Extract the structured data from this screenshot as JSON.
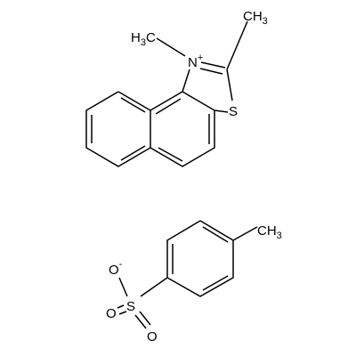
{
  "molecules": [
    {
      "atoms": [
        {
          "label": "H",
          "sub": "3",
          "tail": "C"
        },
        {
          "label": "N",
          "charge": "+"
        },
        {
          "label": "CH",
          "sub": "3"
        },
        {
          "label": "S"
        }
      ]
    },
    {
      "atoms": [
        {
          "label": "CH",
          "sub": "3"
        },
        {
          "label": "O",
          "charge": "-"
        },
        {
          "label": "S"
        },
        {
          "label": "O"
        },
        {
          "label": "O"
        }
      ]
    }
  ]
}
